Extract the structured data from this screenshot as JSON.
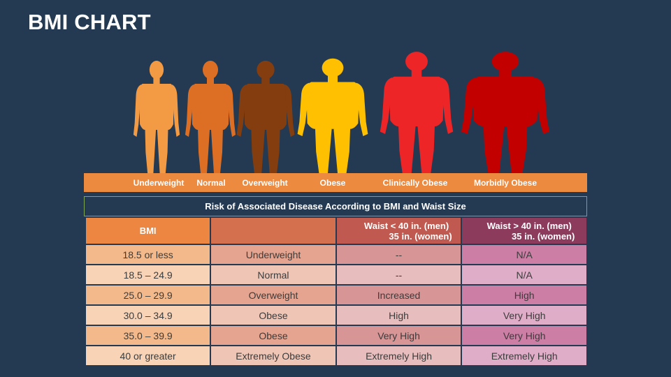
{
  "title": "BMI CHART",
  "figures": [
    {
      "label": "Underweight",
      "color": "#f39a44"
    },
    {
      "label": "Normal",
      "color": "#dd6f25"
    },
    {
      "label": "Overweight",
      "color": "#843d0f"
    },
    {
      "label": "Obese",
      "color": "#fec000"
    },
    {
      "label": "Clinically Obese",
      "color": "#ee2526"
    },
    {
      "label": "Morbidly Obese",
      "color": "#c30000"
    }
  ],
  "table": {
    "caption": "Risk of Associated Disease According to BMI and Waist Size",
    "headers": {
      "bmi": "BMI",
      "classification": "",
      "waist_low_line1": "Waist < 40 in. (men)",
      "waist_low_line2": "35 in. (women)",
      "waist_high_line1": "Waist > 40 in. (men)",
      "waist_high_line2": "35 in. (women)"
    },
    "rows": [
      {
        "bmi": "18.5 or less",
        "class": "Underweight",
        "low": "--",
        "high": "N/A"
      },
      {
        "bmi": "18.5 – 24.9",
        "class": "Normal",
        "low": "--",
        "high": "N/A"
      },
      {
        "bmi": "25.0 – 29.9",
        "class": "Overweight",
        "low": "Increased",
        "high": "High"
      },
      {
        "bmi": "30.0 – 34.9",
        "class": "Obese",
        "low": "High",
        "high": "Very High"
      },
      {
        "bmi": "35.0 – 39.9",
        "class": "Obese",
        "low": "Very High",
        "high": "Very High"
      },
      {
        "bmi": "40 or greater",
        "class": "Extremely Obese",
        "low": "Extremely High",
        "high": "Extremely High"
      }
    ]
  }
}
